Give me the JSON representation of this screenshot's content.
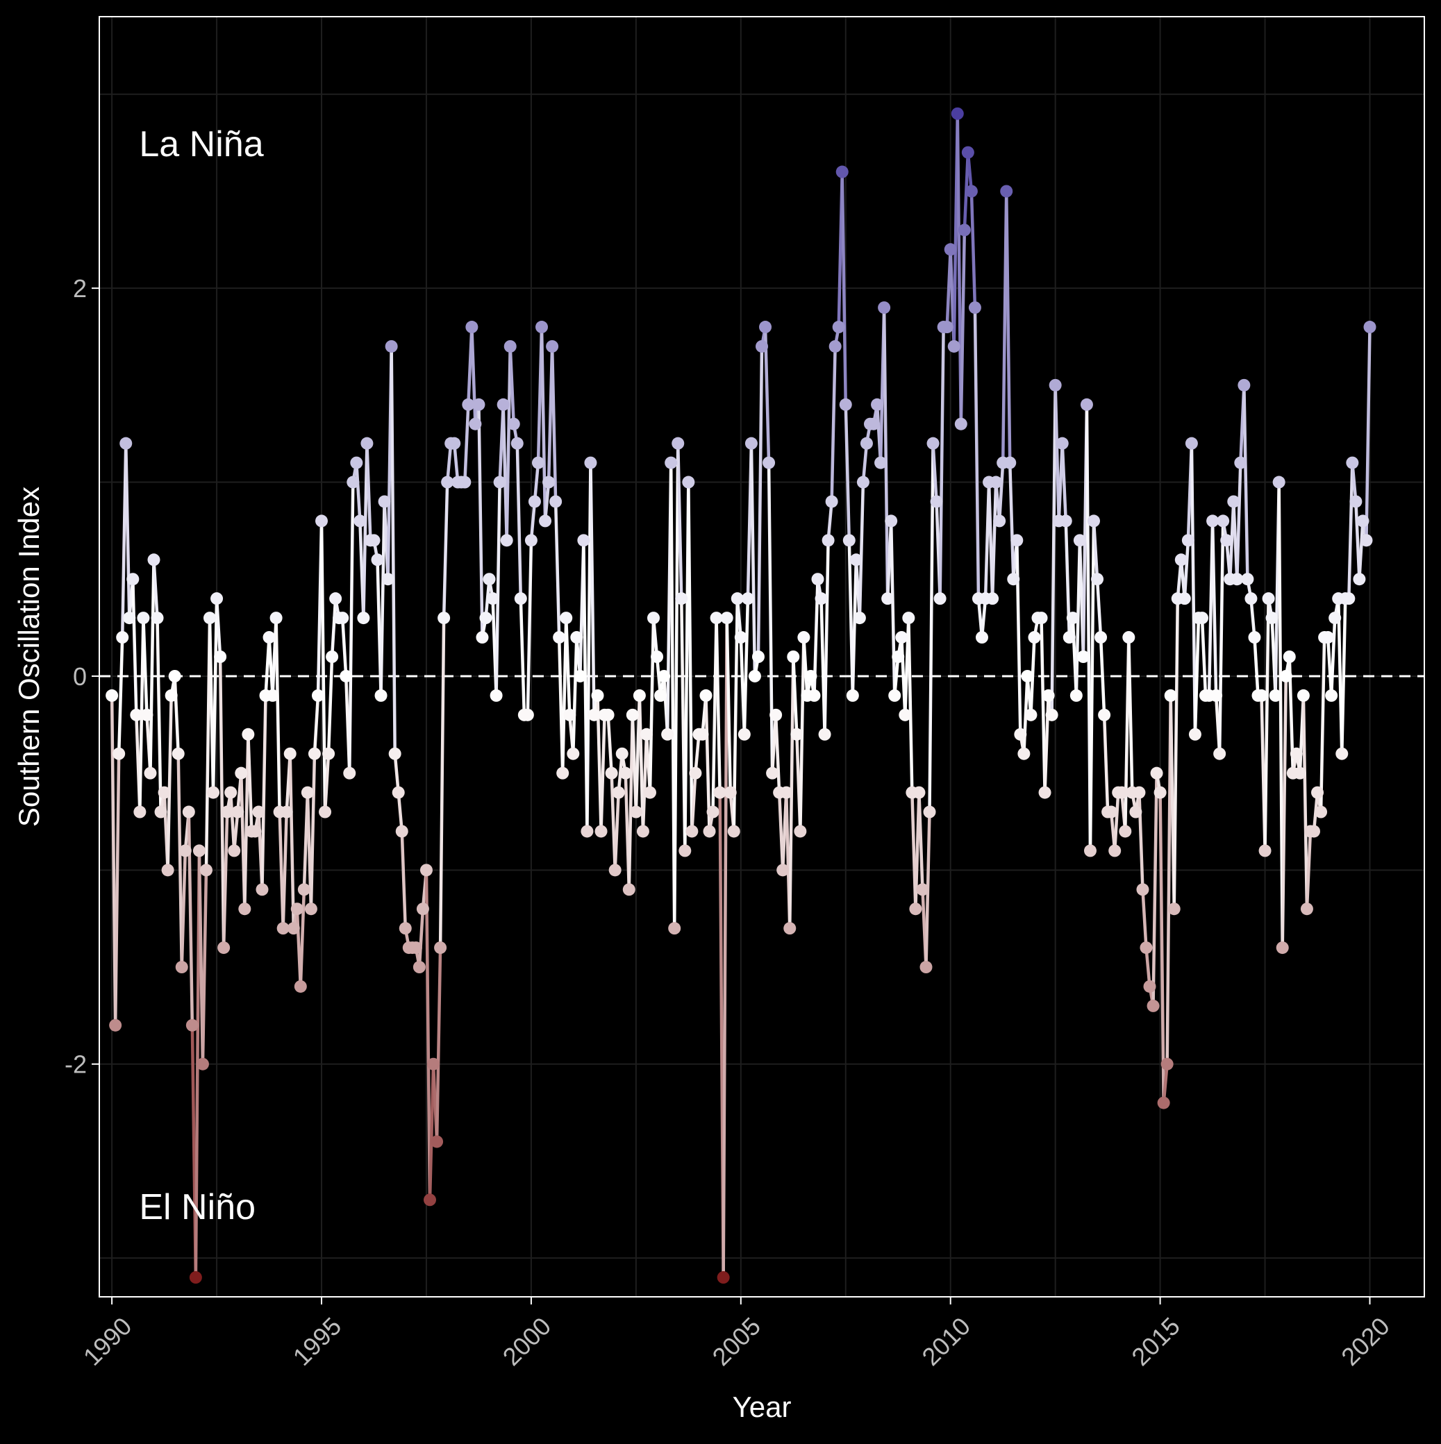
{
  "chart_data": {
    "type": "line",
    "title": "",
    "xlabel": "Year",
    "ylabel": "Southern Oscillation Index",
    "xlim": [
      1989.7,
      2021.3
    ],
    "ylim": [
      -3.2,
      3.4
    ],
    "x_ticks": [
      1990,
      1995,
      2000,
      2005,
      2010,
      2015,
      2020
    ],
    "x_tick_labels": [
      "1990",
      "1995",
      "2000",
      "2005",
      "2010",
      "2015",
      "2020"
    ],
    "y_ticks": [
      -2,
      0,
      2
    ],
    "y_tick_labels": [
      "-2",
      "0",
      "2"
    ],
    "reference_line": {
      "y": 0,
      "style": "dashed",
      "color": "#ffffff"
    },
    "annotations": [
      {
        "text": "La Niña",
        "x": 1990.7,
        "y": 2.73
      },
      {
        "text": "El Niño",
        "x": 1990.7,
        "y": -2.75
      }
    ],
    "grid": true,
    "legend": "none",
    "colors": {
      "background": "#000000",
      "grid": "#1e1e1e",
      "positive_max": "#4b3ea0",
      "neutral": "#ffffff",
      "negative_max": "#7f1d1d",
      "text": "#ffffff",
      "tick_text": "#bdbdbd"
    },
    "color_scale": {
      "min": -3.1,
      "max": 2.9
    },
    "series": [
      {
        "start_year": 1990,
        "frequency": "monthly",
        "values": [
          -0.1,
          -1.8,
          -0.4,
          0.2,
          1.2,
          0.3,
          0.5,
          -0.2,
          -0.7,
          0.3,
          -0.2,
          -0.5,
          0.6,
          0.3,
          -0.7,
          -0.6,
          -1.0,
          -0.1,
          0.0,
          -0.4,
          -1.5,
          -0.9,
          -0.7,
          -1.8,
          -3.1,
          -0.9,
          -2.0,
          -1.0,
          0.3,
          -0.6,
          0.4,
          0.1,
          -1.4,
          -0.7,
          -0.6,
          -0.9,
          -0.7,
          -0.5,
          -1.2,
          -0.3,
          -0.8,
          -0.8,
          -0.7,
          -1.1,
          -0.1,
          0.2,
          -0.1,
          0.3,
          -0.7,
          -1.3,
          -0.7,
          -0.4,
          -1.3,
          -1.2,
          -1.6,
          -1.1,
          -0.6,
          -1.2,
          -0.4,
          -0.1,
          0.8,
          -0.7,
          -0.4,
          0.1,
          0.4,
          0.3,
          0.3,
          0.0,
          -0.5,
          1.0,
          1.1,
          0.8,
          0.3,
          1.2,
          0.7,
          0.7,
          0.6,
          -0.1,
          0.9,
          0.5,
          1.7,
          -0.4,
          -0.6,
          -0.8,
          -1.3,
          -1.4,
          -1.4,
          -1.4,
          -1.5,
          -1.2,
          -1.0,
          -2.7,
          -2.0,
          -2.4,
          -1.4,
          0.3,
          1.0,
          1.2,
          1.2,
          1.0,
          1.0,
          1.0,
          1.4,
          1.8,
          1.3,
          1.4,
          0.2,
          0.3,
          0.5,
          0.4,
          -0.1,
          1.0,
          1.4,
          0.7,
          1.7,
          1.3,
          1.2,
          0.4,
          -0.2,
          -0.2,
          0.7,
          0.9,
          1.1,
          1.8,
          0.8,
          1.0,
          1.7,
          0.9,
          0.2,
          -0.5,
          0.3,
          -0.2,
          -0.4,
          0.2,
          0.0,
          0.7,
          -0.8,
          1.1,
          -0.2,
          -0.1,
          -0.8,
          -0.2,
          -0.2,
          -0.5,
          -1.0,
          -0.6,
          -0.4,
          -0.5,
          -1.1,
          -0.2,
          -0.7,
          -0.1,
          -0.8,
          -0.3,
          -0.6,
          0.3,
          0.1,
          -0.1,
          0.0,
          -0.3,
          1.1,
          -1.3,
          1.2,
          0.4,
          -0.9,
          1.0,
          -0.8,
          -0.5,
          -0.3,
          -0.3,
          -0.1,
          -0.8,
          -0.7,
          0.3,
          -0.6,
          -3.1,
          0.3,
          -0.6,
          -0.8,
          0.4,
          0.2,
          -0.3,
          0.4,
          1.2,
          0.0,
          0.1,
          1.7,
          1.8,
          1.1,
          -0.5,
          -0.2,
          -0.6,
          -1.0,
          -0.6,
          -1.3,
          0.1,
          -0.3,
          -0.8,
          0.2,
          -0.1,
          0.0,
          -0.1,
          0.5,
          0.4,
          -0.3,
          0.7,
          0.9,
          1.7,
          1.8,
          2.6,
          1.4,
          0.7,
          -0.1,
          0.6,
          0.3,
          1.0,
          1.2,
          1.3,
          1.3,
          1.4,
          1.1,
          1.9,
          0.4,
          0.8,
          -0.1,
          0.1,
          0.2,
          -0.2,
          0.3,
          -0.6,
          -1.2,
          -0.6,
          -1.1,
          -1.5,
          -0.7,
          1.2,
          0.9,
          0.4,
          1.8,
          1.8,
          2.2,
          1.7,
          2.9,
          1.3,
          2.3,
          2.7,
          2.5,
          1.9,
          0.4,
          0.2,
          0.4,
          1.0,
          0.4,
          1.0,
          0.8,
          1.1,
          2.5,
          1.1,
          0.5,
          0.7,
          -0.3,
          -0.4,
          0.0,
          -0.2,
          0.2,
          0.3,
          0.3,
          -0.6,
          -0.1,
          -0.2,
          1.5,
          0.8,
          1.2,
          0.8,
          0.2,
          0.3,
          -0.1,
          0.7,
          0.1,
          1.4,
          -0.9,
          0.8,
          0.5,
          0.2,
          -0.2,
          -0.7,
          -0.7,
          -0.9,
          -0.6,
          -0.6,
          -0.8,
          0.2,
          -0.6,
          -0.7,
          -0.6,
          -1.1,
          -1.4,
          -1.6,
          -1.7,
          -0.5,
          -0.6,
          -2.2,
          -2.0,
          -0.1,
          -1.2,
          0.4,
          0.6,
          0.4,
          0.7,
          1.2,
          -0.3,
          0.3,
          0.3,
          -0.1,
          -0.1,
          0.8,
          -0.1,
          -0.4,
          0.8,
          0.7,
          0.5,
          0.9,
          0.5,
          1.1,
          1.5,
          0.5,
          0.4,
          0.2,
          -0.1,
          -0.1,
          -0.9,
          0.4,
          0.3,
          -0.1,
          1.0,
          -1.4,
          0.0,
          0.1,
          -0.5,
          -0.4,
          -0.5,
          -0.1,
          -1.2,
          -0.8,
          -0.8,
          -0.6,
          -0.7,
          0.2,
          0.2,
          -0.1,
          0.3,
          0.4,
          -0.4,
          0.4,
          0.4,
          1.1,
          0.9,
          0.5,
          0.8,
          0.7,
          1.8
        ]
      }
    ]
  }
}
